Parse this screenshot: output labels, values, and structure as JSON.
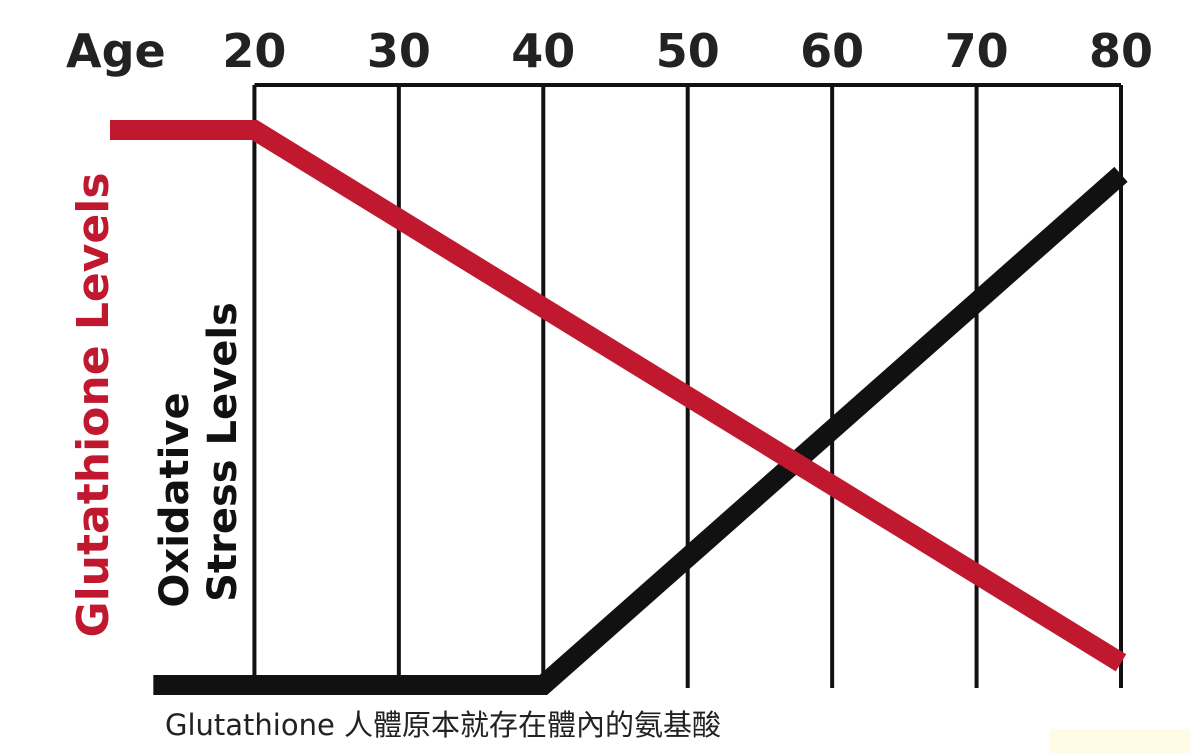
{
  "chart_data": {
    "type": "line",
    "x_axis_label": "Age",
    "x_ticks": [
      20,
      30,
      40,
      50,
      60,
      70,
      80
    ],
    "xlim": [
      10,
      80
    ],
    "ylim": [
      0,
      100
    ],
    "grid": true,
    "series": [
      {
        "name": "Glutathione Levels",
        "color": "#c0192f",
        "points": [
          [
            10,
            100
          ],
          [
            20,
            100
          ],
          [
            80,
            4
          ]
        ]
      },
      {
        "name": "Oxidative Stress Levels",
        "color": "#111111",
        "points": [
          [
            13,
            0
          ],
          [
            40,
            0
          ],
          [
            80,
            92
          ]
        ]
      }
    ],
    "y_labels": {
      "glutathione": "Glutathione Levels",
      "oxidative_line1": "Oxidative",
      "oxidative_line2": "Stress Levels"
    }
  },
  "caption": "Glutathione 人體原本就存在體內的氨基酸"
}
